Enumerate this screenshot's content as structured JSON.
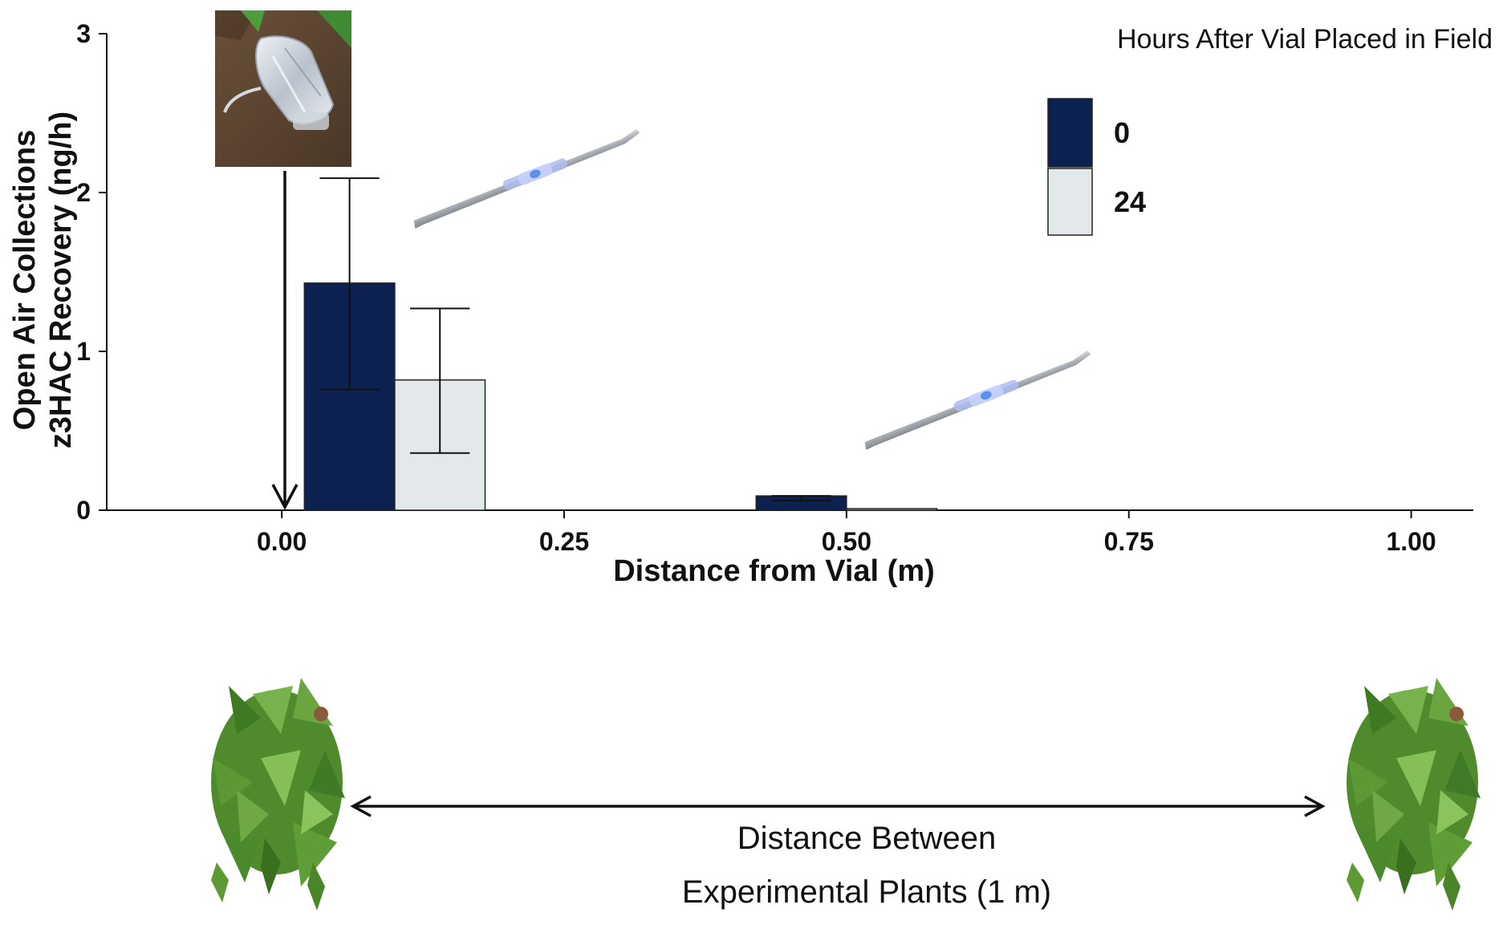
{
  "chart_data": {
    "type": "bar",
    "xlabel": "Distance from Vial (m)",
    "ylabel_lines": [
      "Open Air Collections",
      "z3HAC Recovery (ng/h)"
    ],
    "xlim": [
      -0.155,
      1.055
    ],
    "ylim": [
      0,
      3
    ],
    "x_ticks": [
      "0.00",
      "0.25",
      "0.50",
      "0.75",
      "1.00"
    ],
    "x_tick_values": [
      0.0,
      0.25,
      0.5,
      0.75,
      1.0
    ],
    "y_ticks": [
      "0",
      "1",
      "2",
      "3"
    ],
    "y_tick_values": [
      0,
      1,
      2,
      3
    ],
    "grid": false,
    "legend_position": "top-right",
    "legend_title": "Hours After Vial Placed in Field",
    "categories": [
      0.1,
      0.5
    ],
    "series": [
      {
        "name": "0",
        "color": "#0d2150",
        "values": [
          1.43,
          0.09
        ],
        "error_upper": [
          2.09,
          0.09
        ],
        "error_lower": [
          0.76,
          0.06
        ]
      },
      {
        "name": "24",
        "color": "#e3e8eb",
        "values": [
          0.82,
          0.01
        ],
        "error_upper": [
          1.27,
          0.01
        ],
        "error_lower": [
          0.36,
          0.01
        ]
      }
    ]
  },
  "annotations": {
    "caption_lines": [
      "Distance Between",
      "Experimental Plants (1 m)"
    ]
  },
  "colors": {
    "series_0": "#0d2150",
    "series_24": "#e3e8eb",
    "leaf_dark": "#3f7a26",
    "leaf_light": "#6fa845",
    "soil": "#5e4632",
    "tube": "#a9adb2",
    "tube_glass": "#b8c6f0"
  },
  "icons": {
    "vial_photo": "vial-in-soil-photo",
    "collector_tube": "volatile-collection-tube-icon",
    "plant": "bean-plant-icon"
  }
}
